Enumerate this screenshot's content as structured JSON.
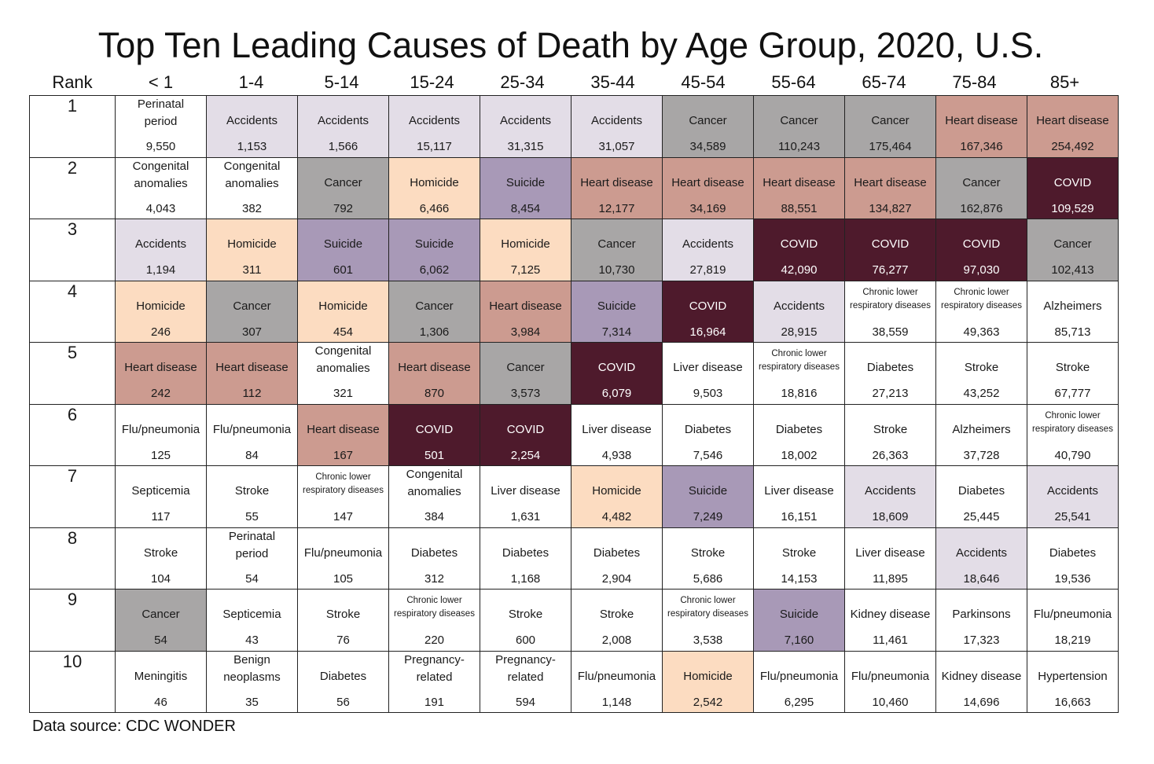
{
  "chart_data": {
    "type": "table",
    "title": "Top Ten Leading Causes of Death by Age Group, 2020, U.S.",
    "rank_header": "Rank",
    "age_groups": [
      "< 1",
      "1-4",
      "5-14",
      "15-24",
      "25-34",
      "35-44",
      "45-54",
      "55-64",
      "65-74",
      "75-84",
      "85+"
    ],
    "ranks": [
      "1",
      "2",
      "3",
      "4",
      "5",
      "6",
      "7",
      "8",
      "9",
      "10"
    ],
    "colors": {
      "Accidents": "#e3dde7",
      "Cancer": "#a8a6a6",
      "Heart disease": "#cc9b90",
      "Homicide": "#fcdcc1",
      "Suicide": "#a899b7",
      "COVID": "#4e1a2c",
      "default": "#ffffff"
    },
    "rows": [
      [
        [
          "Perinatal period",
          "9,550"
        ],
        [
          "Accidents",
          "1,153"
        ],
        [
          "Accidents",
          "1,566"
        ],
        [
          "Accidents",
          "15,117"
        ],
        [
          "Accidents",
          "31,315"
        ],
        [
          "Accidents",
          "31,057"
        ],
        [
          "Cancer",
          "34,589"
        ],
        [
          "Cancer",
          "110,243"
        ],
        [
          "Cancer",
          "175,464"
        ],
        [
          "Heart disease",
          "167,346"
        ],
        [
          "Heart disease",
          "254,492"
        ]
      ],
      [
        [
          "Congenital anomalies",
          "4,043"
        ],
        [
          "Congenital anomalies",
          "382"
        ],
        [
          "Cancer",
          "792"
        ],
        [
          "Homicide",
          "6,466"
        ],
        [
          "Suicide",
          "8,454"
        ],
        [
          "Heart disease",
          "12,177"
        ],
        [
          "Heart disease",
          "34,169"
        ],
        [
          "Heart disease",
          "88,551"
        ],
        [
          "Heart disease",
          "134,827"
        ],
        [
          "Cancer",
          "162,876"
        ],
        [
          "COVID",
          "109,529"
        ]
      ],
      [
        [
          "Accidents",
          "1,194"
        ],
        [
          "Homicide",
          "311"
        ],
        [
          "Suicide",
          "601"
        ],
        [
          "Suicide",
          "6,062"
        ],
        [
          "Homicide",
          "7,125"
        ],
        [
          "Cancer",
          "10,730"
        ],
        [
          "Accidents",
          "27,819"
        ],
        [
          "COVID",
          "42,090"
        ],
        [
          "COVID",
          "76,277"
        ],
        [
          "COVID",
          "97,030"
        ],
        [
          "Cancer",
          "102,413"
        ]
      ],
      [
        [
          "Homicide",
          "246"
        ],
        [
          "Cancer",
          "307"
        ],
        [
          "Homicide",
          "454"
        ],
        [
          "Cancer",
          "1,306"
        ],
        [
          "Heart disease",
          "3,984"
        ],
        [
          "Suicide",
          "7,314"
        ],
        [
          "COVID",
          "16,964"
        ],
        [
          "Accidents",
          "28,915"
        ],
        [
          "Chronic lower respiratory diseases",
          "38,559"
        ],
        [
          "Chronic lower respiratory diseases",
          "49,363"
        ],
        [
          "Alzheimers",
          "85,713"
        ]
      ],
      [
        [
          "Heart disease",
          "242"
        ],
        [
          "Heart disease",
          "112"
        ],
        [
          "Congenital anomalies",
          "321"
        ],
        [
          "Heart disease",
          "870"
        ],
        [
          "Cancer",
          "3,573"
        ],
        [
          "COVID",
          "6,079"
        ],
        [
          "Liver disease",
          "9,503"
        ],
        [
          "Chronic lower respiratory diseases",
          "18,816"
        ],
        [
          "Diabetes",
          "27,213"
        ],
        [
          "Stroke",
          "43,252"
        ],
        [
          "Stroke",
          "67,777"
        ]
      ],
      [
        [
          "Flu/pneumonia",
          "125"
        ],
        [
          "Flu/pneumonia",
          "84"
        ],
        [
          "Heart disease",
          "167"
        ],
        [
          "COVID",
          "501"
        ],
        [
          "COVID",
          "2,254"
        ],
        [
          "Liver disease",
          "4,938"
        ],
        [
          "Diabetes",
          "7,546"
        ],
        [
          "Diabetes",
          "18,002"
        ],
        [
          "Stroke",
          "26,363"
        ],
        [
          "Alzheimers",
          "37,728"
        ],
        [
          "Chronic lower respiratory diseases",
          "40,790"
        ]
      ],
      [
        [
          "Septicemia",
          "117"
        ],
        [
          "Stroke",
          "55"
        ],
        [
          "Chronic lower respiratory diseases",
          "147"
        ],
        [
          "Congenital anomalies",
          "384"
        ],
        [
          "Liver disease",
          "1,631"
        ],
        [
          "Homicide",
          "4,482"
        ],
        [
          "Suicide",
          "7,249"
        ],
        [
          "Liver disease",
          "16,151"
        ],
        [
          "Accidents",
          "18,609"
        ],
        [
          "Diabetes",
          "25,445"
        ],
        [
          "Accidents",
          "25,541"
        ]
      ],
      [
        [
          "Stroke",
          "104"
        ],
        [
          "Perinatal period",
          "54"
        ],
        [
          "Flu/pneumonia",
          "105"
        ],
        [
          "Diabetes",
          "312"
        ],
        [
          "Diabetes",
          "1,168"
        ],
        [
          "Diabetes",
          "2,904"
        ],
        [
          "Stroke",
          "5,686"
        ],
        [
          "Stroke",
          "14,153"
        ],
        [
          "Liver disease",
          "11,895"
        ],
        [
          "Accidents",
          "18,646"
        ],
        [
          "Diabetes",
          "19,536"
        ]
      ],
      [
        [
          "Cancer",
          "54"
        ],
        [
          "Septicemia",
          "43"
        ],
        [
          "Stroke",
          "76"
        ],
        [
          "Chronic lower respiratory diseases",
          "220"
        ],
        [
          "Stroke",
          "600"
        ],
        [
          "Stroke",
          "2,008"
        ],
        [
          "Chronic lower respiratory diseases",
          "3,538"
        ],
        [
          "Suicide",
          "7,160"
        ],
        [
          "Kidney disease",
          "11,461"
        ],
        [
          "Parkinsons",
          "17,323"
        ],
        [
          "Flu/pneumonia",
          "18,219"
        ]
      ],
      [
        [
          "Meningitis",
          "46"
        ],
        [
          "Benign neoplasms",
          "35"
        ],
        [
          "Diabetes",
          "56"
        ],
        [
          "Pregnancy-related",
          "191"
        ],
        [
          "Pregnancy-related",
          "594"
        ],
        [
          "Flu/pneumonia",
          "1,148"
        ],
        [
          "Homicide",
          "2,542"
        ],
        [
          "Flu/pneumonia",
          "6,295"
        ],
        [
          "Flu/pneumonia",
          "10,460"
        ],
        [
          "Kidney disease",
          "14,696"
        ],
        [
          "Hypertension",
          "16,663"
        ]
      ]
    ],
    "source": "Data source: CDC WONDER"
  }
}
